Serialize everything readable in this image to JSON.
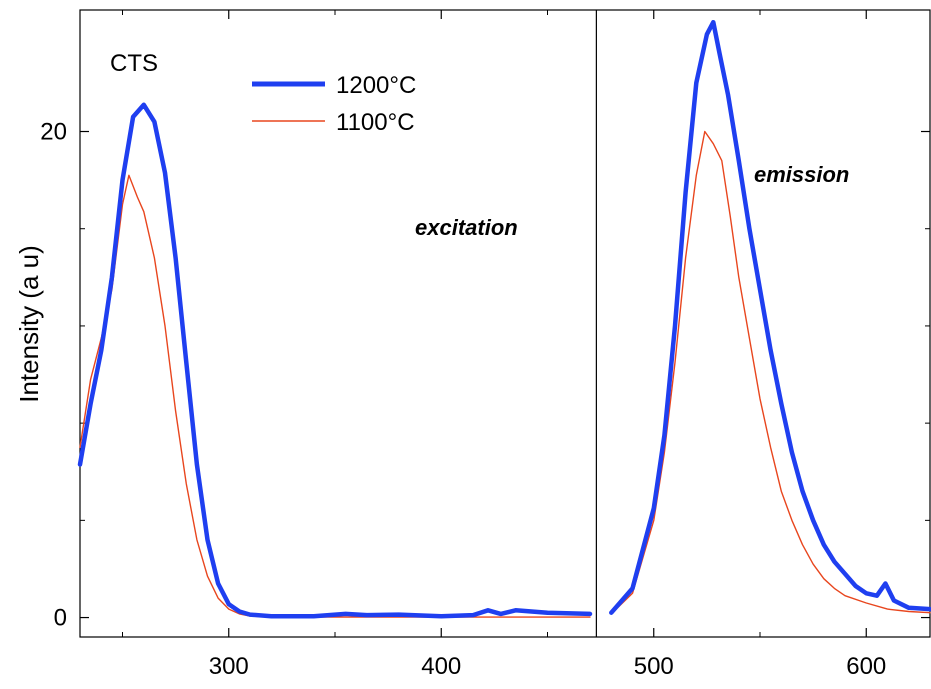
{
  "chart_data": {
    "type": "line",
    "ylabel": "Intensity (a u)",
    "xlabel": "",
    "xlim": [
      230,
      630
    ],
    "ylim": [
      -0.8,
      25
    ],
    "x_break": 473,
    "x_ticks": [
      300,
      400,
      500,
      600
    ],
    "x_ticks_minor": [
      250,
      350,
      450,
      550
    ],
    "y_ticks": [
      0,
      20
    ],
    "y_ticks_minor": [
      4,
      8,
      12,
      16
    ],
    "annotations": {
      "sample": "CTS",
      "excitation": "excitation",
      "emission": "emission"
    },
    "legend": {
      "position": "top-center",
      "entries": [
        "1200°C",
        "1100°C"
      ]
    },
    "series": [
      {
        "name": "1200°C",
        "color": "#1f3ff0",
        "segments": [
          [
            [
              230,
              6.3
            ],
            [
              235,
              8.8
            ],
            [
              240,
              11.0
            ],
            [
              245,
              14.0
            ],
            [
              250,
              18.0
            ],
            [
              255,
              20.6
            ],
            [
              260,
              21.1
            ],
            [
              265,
              20.4
            ],
            [
              270,
              18.3
            ],
            [
              275,
              14.8
            ],
            [
              280,
              10.5
            ],
            [
              285,
              6.3
            ],
            [
              290,
              3.2
            ],
            [
              295,
              1.4
            ],
            [
              300,
              0.55
            ],
            [
              305,
              0.25
            ],
            [
              310,
              0.12
            ],
            [
              320,
              0.05
            ],
            [
              340,
              0.05
            ],
            [
              355,
              0.15
            ],
            [
              365,
              0.1
            ],
            [
              380,
              0.12
            ],
            [
              400,
              0.05
            ],
            [
              415,
              0.1
            ],
            [
              422,
              0.3
            ],
            [
              428,
              0.15
            ],
            [
              435,
              0.3
            ],
            [
              450,
              0.2
            ],
            [
              470,
              0.15
            ]
          ],
          [
            [
              480,
              0.2
            ],
            [
              490,
              1.2
            ],
            [
              500,
              4.5
            ],
            [
              505,
              7.5
            ],
            [
              510,
              12.0
            ],
            [
              515,
              17.5
            ],
            [
              520,
              22.0
            ],
            [
              525,
              24.0
            ],
            [
              528,
              24.5
            ],
            [
              531,
              23.2
            ],
            [
              535,
              21.5
            ],
            [
              540,
              18.8
            ],
            [
              545,
              16.0
            ],
            [
              550,
              13.5
            ],
            [
              555,
              11.0
            ],
            [
              560,
              8.8
            ],
            [
              565,
              6.8
            ],
            [
              570,
              5.2
            ],
            [
              575,
              4.0
            ],
            [
              580,
              3.0
            ],
            [
              585,
              2.3
            ],
            [
              590,
              1.8
            ],
            [
              595,
              1.3
            ],
            [
              600,
              1.0
            ],
            [
              605,
              0.9
            ],
            [
              609,
              1.4
            ],
            [
              613,
              0.7
            ],
            [
              620,
              0.4
            ],
            [
              630,
              0.35
            ]
          ]
        ]
      },
      {
        "name": "1100°C",
        "color": "#e8461e",
        "segments": [
          [
            [
              230,
              7.0
            ],
            [
              235,
              9.8
            ],
            [
              240,
              11.5
            ],
            [
              245,
              13.5
            ],
            [
              250,
              17.0
            ],
            [
              253,
              18.2
            ],
            [
              257,
              17.3
            ],
            [
              260,
              16.7
            ],
            [
              265,
              14.8
            ],
            [
              270,
              12.0
            ],
            [
              275,
              8.5
            ],
            [
              280,
              5.5
            ],
            [
              285,
              3.2
            ],
            [
              290,
              1.7
            ],
            [
              295,
              0.8
            ],
            [
              300,
              0.35
            ],
            [
              305,
              0.15
            ],
            [
              310,
              0.06
            ],
            [
              320,
              0.02
            ],
            [
              470,
              0.02
            ]
          ],
          [
            [
              480,
              0.15
            ],
            [
              490,
              1.0
            ],
            [
              500,
              4.0
            ],
            [
              505,
              6.8
            ],
            [
              510,
              10.5
            ],
            [
              515,
              14.8
            ],
            [
              520,
              18.2
            ],
            [
              524,
              20.0
            ],
            [
              528,
              19.5
            ],
            [
              532,
              18.8
            ],
            [
              536,
              16.5
            ],
            [
              540,
              14.0
            ],
            [
              545,
              11.5
            ],
            [
              550,
              9.0
            ],
            [
              555,
              7.0
            ],
            [
              560,
              5.2
            ],
            [
              565,
              4.0
            ],
            [
              570,
              3.0
            ],
            [
              575,
              2.2
            ],
            [
              580,
              1.6
            ],
            [
              585,
              1.2
            ],
            [
              590,
              0.9
            ],
            [
              600,
              0.6
            ],
            [
              610,
              0.35
            ],
            [
              620,
              0.25
            ],
            [
              630,
              0.2
            ]
          ]
        ]
      }
    ]
  }
}
